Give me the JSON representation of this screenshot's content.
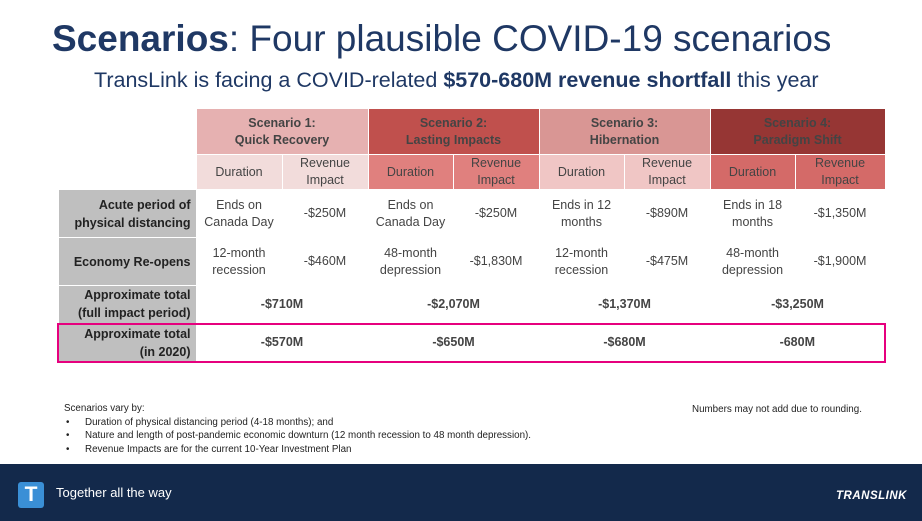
{
  "title": {
    "bold": "Scenarios",
    "rest": ": Four plausible COVID-19 scenarios"
  },
  "subtitle": {
    "pre": "TransLink is facing a COVID-related ",
    "bold": "$570-680M revenue shortfall",
    "post": " this year"
  },
  "table": {
    "scenarios": [
      {
        "label_line1": "Scenario 1:",
        "label_line2": "Quick Recovery",
        "color": "#e6b1b1"
      },
      {
        "label_line1": "Scenario 2:",
        "label_line2": "Lasting Impacts",
        "color": "#c0504d"
      },
      {
        "label_line1": "Scenario 3:",
        "label_line2": "Hibernation",
        "color": "#d99694"
      },
      {
        "label_line1": "Scenario 4:",
        "label_line2": "Paradigm Shift",
        "color": "#963634"
      }
    ],
    "subheaders": {
      "duration": "Duration",
      "revenue_impact_line1": "Revenue",
      "revenue_impact_line2": "Impact",
      "revenue_impact_one_line": "Revenue Impact"
    },
    "rows": [
      {
        "label_line1": "Acute period of",
        "label_line2": "physical distancing",
        "cells": [
          {
            "d1": "Ends on",
            "d2": "Canada Day",
            "impact": "-$250M"
          },
          {
            "d1": "Ends on",
            "d2": "Canada Day",
            "impact": "-$250M"
          },
          {
            "d1": "Ends in 12",
            "d2": "months",
            "impact": "-$890M"
          },
          {
            "d1": "Ends in 18",
            "d2": "months",
            "impact": "-$1,350M"
          }
        ]
      },
      {
        "label_line1": "Economy Re-opens",
        "label_line2": "",
        "cells": [
          {
            "d1": "12-month",
            "d2": "recession",
            "impact": "-$460M"
          },
          {
            "d1": "48-month",
            "d2": "depression",
            "impact": "-$1,830M"
          },
          {
            "d1": "12-month",
            "d2": "recession",
            "impact": "-$475M"
          },
          {
            "d1": "48-month",
            "d2": "depression",
            "impact": "-$1,900M"
          }
        ]
      }
    ],
    "totals": [
      {
        "label_line1": "Approximate total",
        "label_line2": "(full impact period)",
        "values": [
          "-$710M",
          "-$2,070M",
          "-$1,370M",
          "-$3,250M"
        ]
      },
      {
        "label_line1": "Approximate total",
        "label_line2": "(in 2020)",
        "values": [
          "-$570M",
          "-$650M",
          "-$680M",
          "-680M"
        ],
        "highlight_color": "#e6007e"
      }
    ]
  },
  "notes": {
    "heading": "Scenarios vary by:",
    "items": [
      "Duration of physical distancing period (4-18 months); and",
      "Nature and length of post-pandemic economic downturn (12 month recession to 48 month depression).",
      "Revenue Impacts are for the current 10-Year Investment Plan"
    ],
    "rounding": "Numbers may not add due to rounding."
  },
  "footer": {
    "logo_letter": "T",
    "tagline": "Together all the way",
    "brand": "TRANSLINK",
    "background": "#13294b"
  }
}
